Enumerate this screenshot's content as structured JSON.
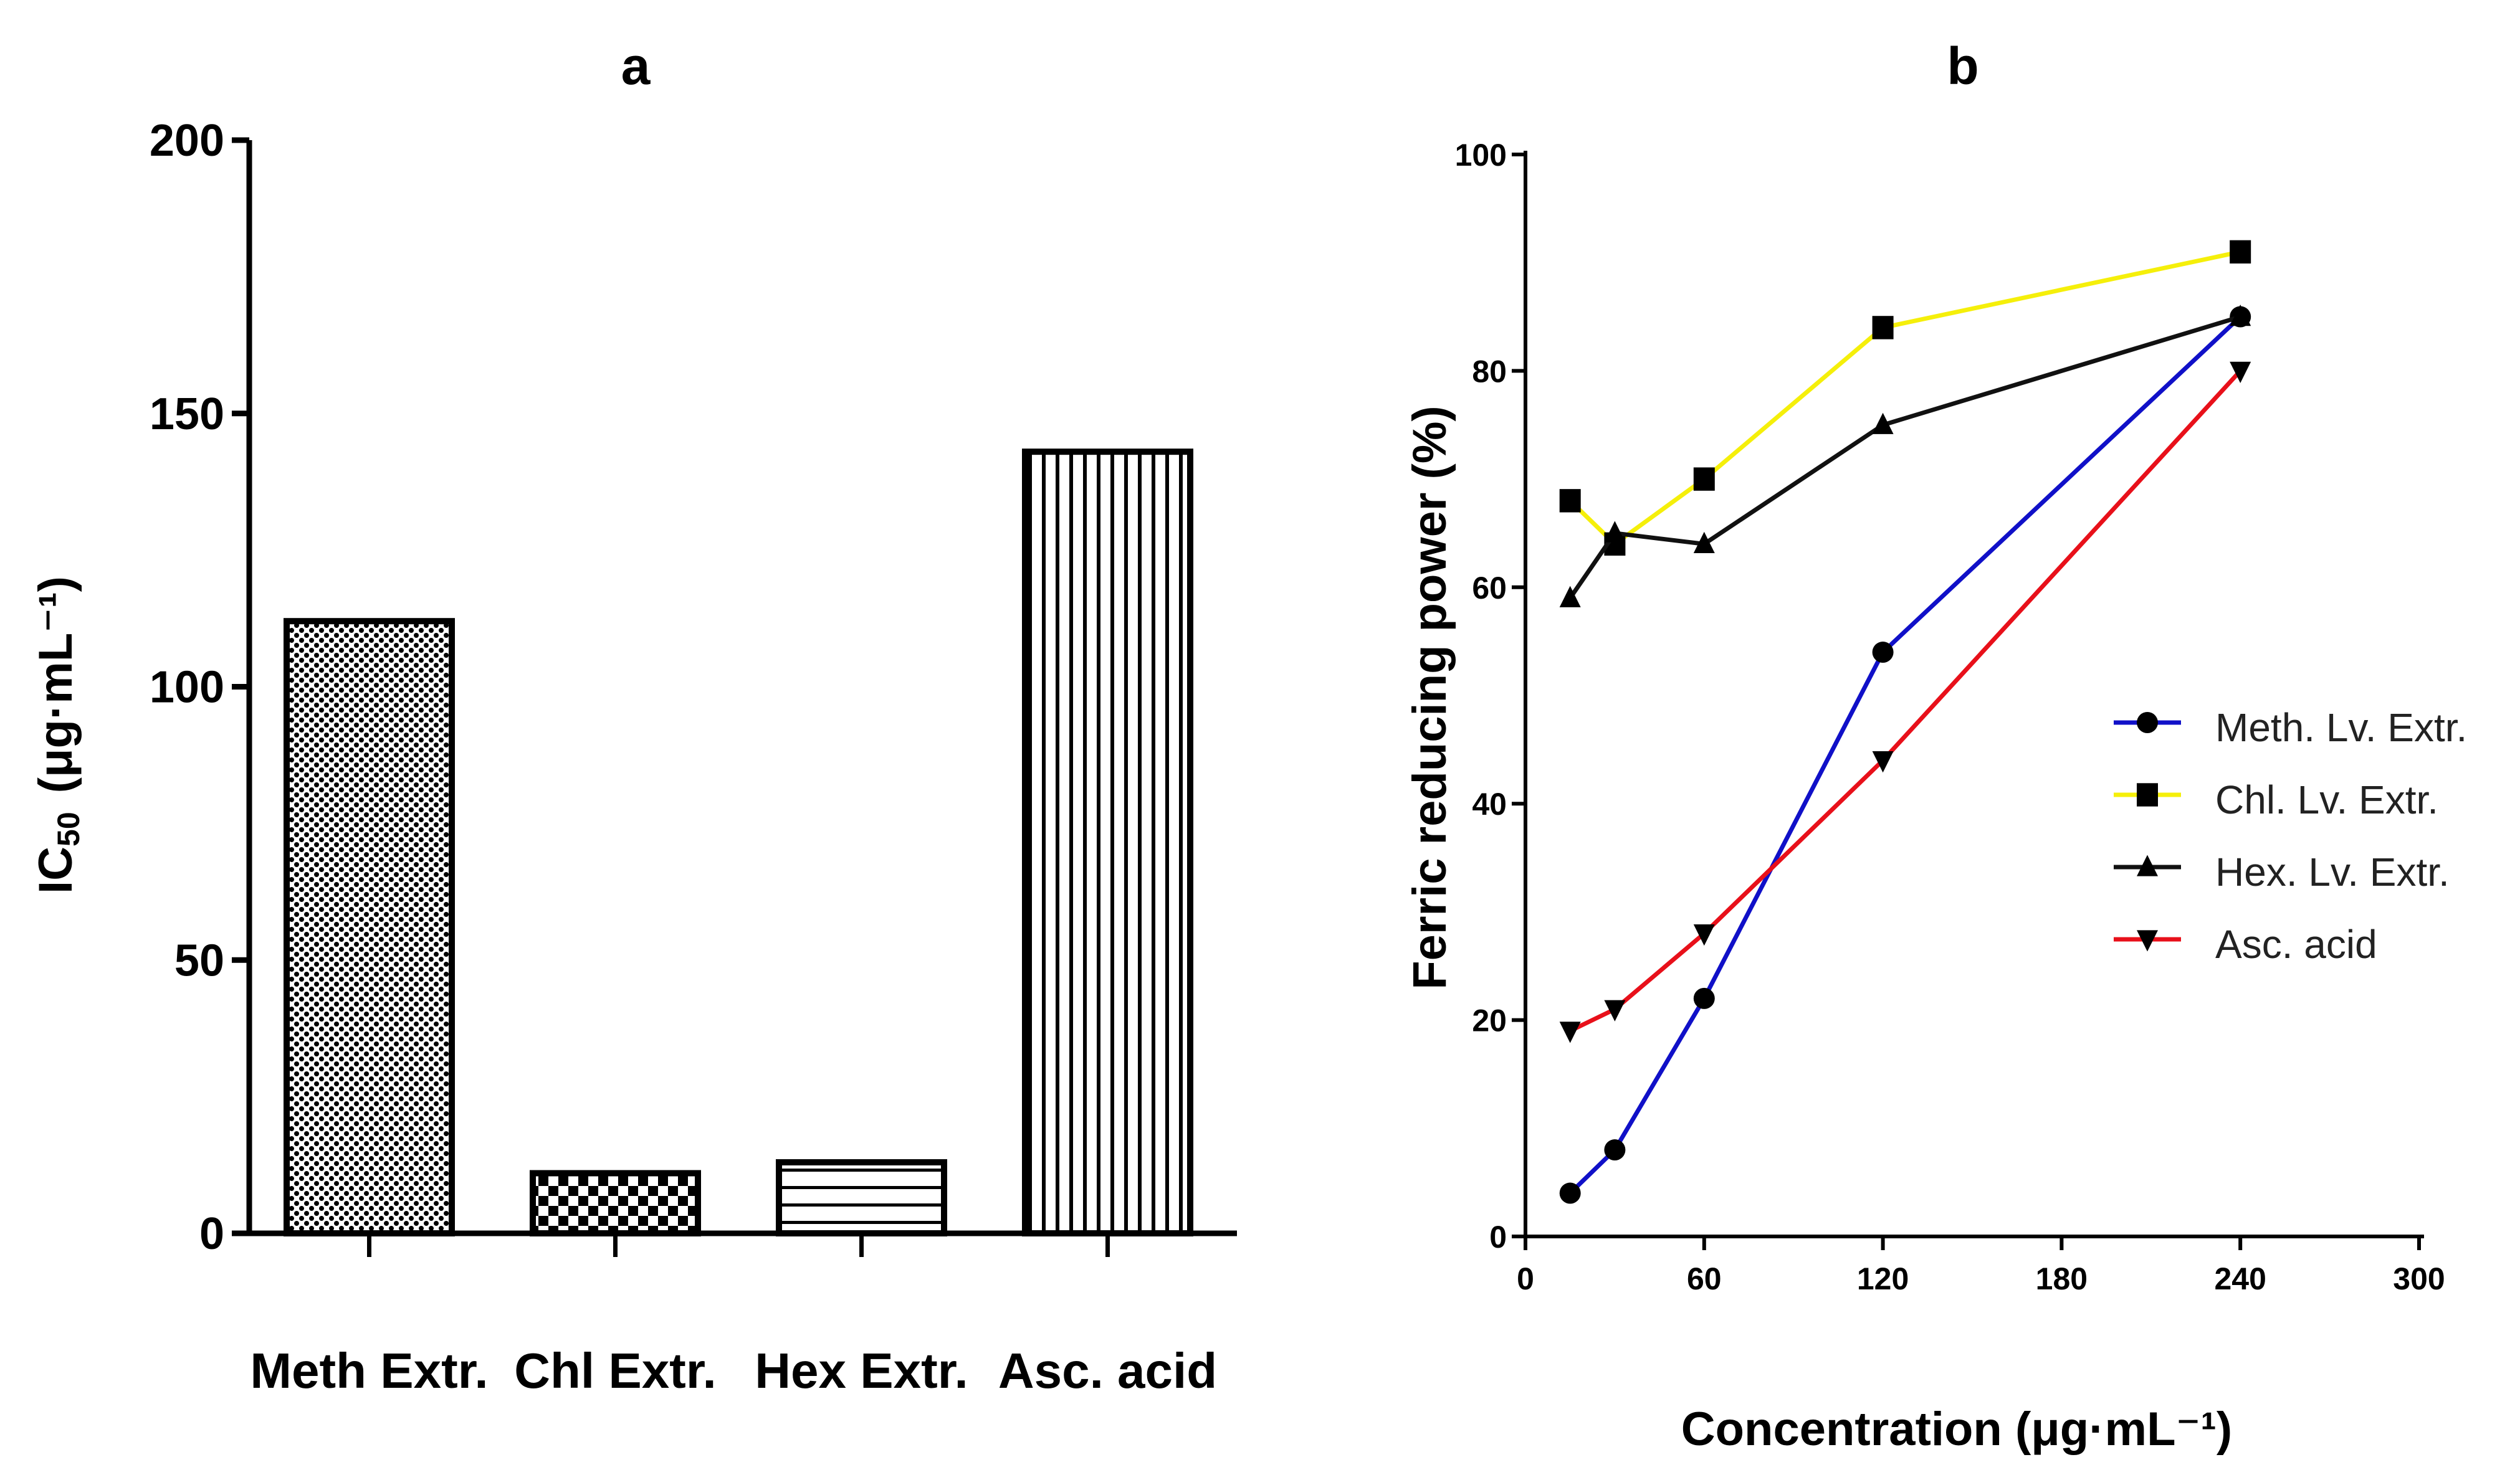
{
  "chart_data": [
    {
      "panel": "a",
      "type": "bar",
      "title": "a",
      "ylabel": "IC",
      "ylabel_sub": "50",
      "ylabel_units": "(μg·mL⁻¹)",
      "xlabel": "",
      "categories": [
        "Meth Extr.",
        "Chl Extr.",
        "Hex Extr.",
        "Asc. acid"
      ],
      "values": [
        112,
        11,
        13,
        143
      ],
      "patterns": [
        "dots",
        "checker",
        "hlines",
        "vlines"
      ],
      "ylim": [
        0,
        200
      ],
      "yticks": [
        "0",
        "50",
        "100",
        "150",
        "200"
      ],
      "grid": false
    },
    {
      "panel": "b",
      "type": "line",
      "title": "b",
      "xlabel": "Concentration (μg·mL⁻¹)",
      "ylabel": "Ferric reducing power  (%)",
      "xlim": [
        0,
        300
      ],
      "ylim": [
        0,
        100
      ],
      "xticks": [
        "0",
        "60",
        "120",
        "180",
        "240",
        "300"
      ],
      "yticks": [
        "0",
        "20",
        "40",
        "60",
        "80",
        "100"
      ],
      "x": [
        15,
        30,
        60,
        120,
        240
      ],
      "series": [
        {
          "name": "Meth. Lv. Extr.",
          "color": "#1010c8",
          "marker": "circle",
          "values": [
            4,
            8,
            22,
            54,
            85
          ]
        },
        {
          "name": "Chl. Lv. Extr.",
          "color": "#f5ef0a",
          "marker": "square",
          "values": [
            68,
            64,
            70,
            84,
            91
          ]
        },
        {
          "name": "Hex. Lv. Extr.",
          "color": "#111111",
          "marker": "triangle-up",
          "values": [
            59,
            65,
            64,
            75,
            85
          ]
        },
        {
          "name": "Asc. acid",
          "color": "#e8101a",
          "marker": "triangle-down",
          "values": [
            19,
            21,
            28,
            44,
            80
          ]
        }
      ],
      "legend_position": "right",
      "grid": false
    }
  ]
}
